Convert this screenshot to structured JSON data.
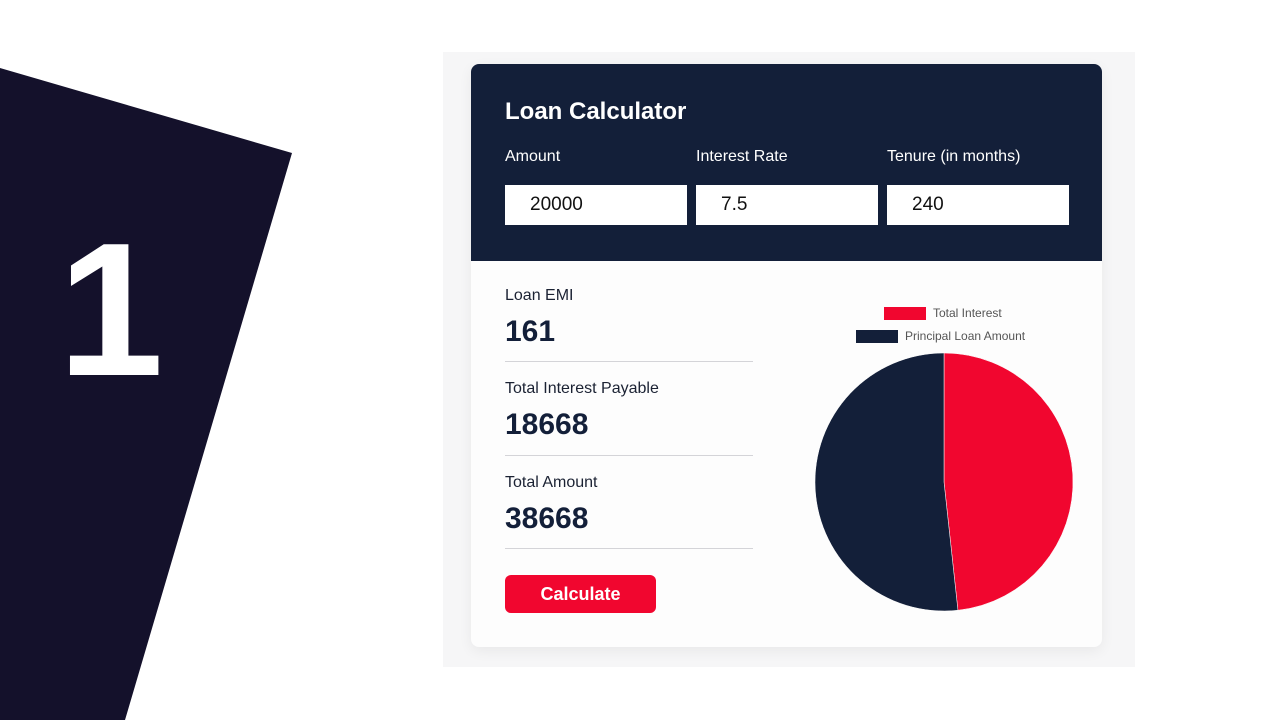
{
  "slide": {
    "number": "1",
    "shape_color": "#14112b"
  },
  "calculator": {
    "title": "Loan Calculator",
    "inputs": [
      {
        "label": "Amount",
        "value": "20000"
      },
      {
        "label": "Interest Rate",
        "value": "7.5"
      },
      {
        "label": "Tenure (in months)",
        "value": "240"
      }
    ],
    "results": [
      {
        "label": "Loan EMI",
        "value": "161"
      },
      {
        "label": "Total Interest Payable",
        "value": "18668"
      },
      {
        "label": "Total Amount",
        "value": "38668"
      }
    ],
    "calculate_label": "Calculate"
  },
  "colors": {
    "header": "#131f39",
    "accent": "#f1062f"
  },
  "chart_data": {
    "type": "pie",
    "legend_position": "top",
    "series": [
      {
        "name": "Total Interest",
        "value": 18668,
        "color": "#f1062f"
      },
      {
        "name": "Principal Loan Amount",
        "value": 20000,
        "color": "#131f39"
      }
    ]
  }
}
